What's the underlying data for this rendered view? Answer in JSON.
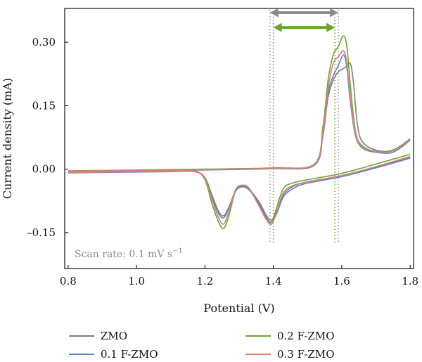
{
  "chart_data": {
    "type": "line",
    "xlabel": "Potential (V)",
    "ylabel": "Current density (mA)",
    "xlim": [
      0.79,
      1.81
    ],
    "ylim": [
      -0.235,
      0.38
    ],
    "x_ticks": [
      0.8,
      1.0,
      1.2,
      1.4,
      1.6,
      1.8
    ],
    "x_tick_labels": [
      "0.8",
      "1.0",
      "1.2",
      "1.4",
      "1.6",
      "1.8"
    ],
    "y_ticks": [
      0.3,
      0.15,
      0.0,
      -0.15
    ],
    "y_tick_labels": [
      "0.30",
      "0.15",
      "0.00",
      "–0.15"
    ],
    "annotation": "Scan rate: 0.1 mV s",
    "annotation_sup": "−1",
    "legend_placement": "bottom",
    "grid": false,
    "markers": {
      "gray_dotted_x": [
        1.39,
        1.59
      ],
      "green_dotted_x": [
        1.4,
        1.58
      ],
      "gray_arrow": {
        "x": [
          1.39,
          1.59
        ],
        "y": 0.37,
        "color": "#8c8c8c"
      },
      "green_arrow": {
        "x": [
          1.4,
          1.58
        ],
        "y": 0.335,
        "color": "#6aa629"
      }
    },
    "series": [
      {
        "name": "ZMO",
        "color": "#7f7f7f",
        "cathodic": [
          [
            0.8,
            -0.008
          ],
          [
            1.0,
            -0.006
          ],
          [
            1.1,
            -0.005
          ],
          [
            1.17,
            -0.005
          ],
          [
            1.2,
            -0.02
          ],
          [
            1.22,
            -0.06
          ],
          [
            1.24,
            -0.1
          ],
          [
            1.255,
            -0.11
          ],
          [
            1.27,
            -0.09
          ],
          [
            1.29,
            -0.05
          ],
          [
            1.31,
            -0.04
          ],
          [
            1.33,
            -0.048
          ],
          [
            1.36,
            -0.08
          ],
          [
            1.38,
            -0.11
          ],
          [
            1.395,
            -0.12
          ],
          [
            1.41,
            -0.1
          ],
          [
            1.43,
            -0.06
          ],
          [
            1.46,
            -0.04
          ],
          [
            1.5,
            -0.03
          ],
          [
            1.6,
            -0.015
          ],
          [
            1.7,
            0.005
          ],
          [
            1.8,
            0.028
          ]
        ],
        "anodic": [
          [
            0.8,
            -0.005
          ],
          [
            1.0,
            -0.003
          ],
          [
            1.2,
            -0.001
          ],
          [
            1.4,
            0.002
          ],
          [
            1.52,
            0.01
          ],
          [
            1.545,
            0.08
          ],
          [
            1.56,
            0.17
          ],
          [
            1.575,
            0.21
          ],
          [
            1.59,
            0.23
          ],
          [
            1.61,
            0.24
          ],
          [
            1.625,
            0.25
          ],
          [
            1.635,
            0.2
          ],
          [
            1.645,
            0.11
          ],
          [
            1.66,
            0.065
          ],
          [
            1.7,
            0.045
          ],
          [
            1.75,
            0.045
          ],
          [
            1.8,
            0.072
          ]
        ]
      },
      {
        "name": "0.1 F-ZMO",
        "color": "#5a84c4",
        "cathodic": [
          [
            0.8,
            -0.009
          ],
          [
            1.0,
            -0.007
          ],
          [
            1.1,
            -0.006
          ],
          [
            1.17,
            -0.006
          ],
          [
            1.2,
            -0.022
          ],
          [
            1.22,
            -0.065
          ],
          [
            1.24,
            -0.105
          ],
          [
            1.255,
            -0.115
          ],
          [
            1.27,
            -0.092
          ],
          [
            1.29,
            -0.052
          ],
          [
            1.31,
            -0.042
          ],
          [
            1.33,
            -0.05
          ],
          [
            1.36,
            -0.085
          ],
          [
            1.38,
            -0.115
          ],
          [
            1.395,
            -0.125
          ],
          [
            1.41,
            -0.105
          ],
          [
            1.43,
            -0.065
          ],
          [
            1.46,
            -0.045
          ],
          [
            1.5,
            -0.033
          ],
          [
            1.6,
            -0.018
          ],
          [
            1.7,
            0.003
          ],
          [
            1.8,
            0.026
          ]
        ],
        "anodic": [
          [
            0.8,
            -0.006
          ],
          [
            1.0,
            -0.004
          ],
          [
            1.2,
            -0.002
          ],
          [
            1.4,
            0.001
          ],
          [
            1.52,
            0.009
          ],
          [
            1.545,
            0.085
          ],
          [
            1.56,
            0.18
          ],
          [
            1.575,
            0.22
          ],
          [
            1.59,
            0.245
          ],
          [
            1.605,
            0.27
          ],
          [
            1.615,
            0.24
          ],
          [
            1.625,
            0.16
          ],
          [
            1.64,
            0.08
          ],
          [
            1.66,
            0.05
          ],
          [
            1.7,
            0.04
          ],
          [
            1.75,
            0.04
          ],
          [
            1.8,
            0.068
          ]
        ]
      },
      {
        "name": "0.2 F-ZMO",
        "color": "#6aa629",
        "cathodic": [
          [
            0.8,
            -0.007
          ],
          [
            1.0,
            -0.005
          ],
          [
            1.1,
            -0.004
          ],
          [
            1.17,
            -0.004
          ],
          [
            1.2,
            -0.025
          ],
          [
            1.22,
            -0.08
          ],
          [
            1.24,
            -0.125
          ],
          [
            1.255,
            -0.14
          ],
          [
            1.27,
            -0.11
          ],
          [
            1.29,
            -0.05
          ],
          [
            1.31,
            -0.038
          ],
          [
            1.33,
            -0.046
          ],
          [
            1.36,
            -0.09
          ],
          [
            1.38,
            -0.12
          ],
          [
            1.395,
            -0.125
          ],
          [
            1.41,
            -0.09
          ],
          [
            1.43,
            -0.045
          ],
          [
            1.46,
            -0.032
          ],
          [
            1.5,
            -0.025
          ],
          [
            1.6,
            -0.01
          ],
          [
            1.7,
            0.012
          ],
          [
            1.8,
            0.035
          ]
        ],
        "anodic": [
          [
            0.8,
            -0.004
          ],
          [
            1.0,
            -0.002
          ],
          [
            1.2,
            0.0
          ],
          [
            1.4,
            0.003
          ],
          [
            1.52,
            0.012
          ],
          [
            1.545,
            0.1
          ],
          [
            1.56,
            0.21
          ],
          [
            1.575,
            0.27
          ],
          [
            1.59,
            0.29
          ],
          [
            1.605,
            0.315
          ],
          [
            1.615,
            0.29
          ],
          [
            1.625,
            0.2
          ],
          [
            1.64,
            0.09
          ],
          [
            1.66,
            0.055
          ],
          [
            1.7,
            0.042
          ],
          [
            1.75,
            0.045
          ],
          [
            1.8,
            0.07
          ]
        ]
      },
      {
        "name": "0.3 F-ZMO",
        "color": "#e07e78",
        "cathodic": [
          [
            0.8,
            -0.008
          ],
          [
            1.0,
            -0.006
          ],
          [
            1.1,
            -0.005
          ],
          [
            1.17,
            -0.005
          ],
          [
            1.2,
            -0.022
          ],
          [
            1.22,
            -0.07
          ],
          [
            1.24,
            -0.115
          ],
          [
            1.255,
            -0.13
          ],
          [
            1.27,
            -0.1
          ],
          [
            1.29,
            -0.048
          ],
          [
            1.31,
            -0.038
          ],
          [
            1.33,
            -0.047
          ],
          [
            1.36,
            -0.09
          ],
          [
            1.38,
            -0.12
          ],
          [
            1.395,
            -0.13
          ],
          [
            1.41,
            -0.1
          ],
          [
            1.43,
            -0.055
          ],
          [
            1.46,
            -0.038
          ],
          [
            1.5,
            -0.03
          ],
          [
            1.6,
            -0.015
          ],
          [
            1.7,
            0.006
          ],
          [
            1.8,
            0.03
          ]
        ],
        "anodic": [
          [
            0.8,
            -0.005
          ],
          [
            1.0,
            -0.003
          ],
          [
            1.2,
            -0.001
          ],
          [
            1.4,
            0.002
          ],
          [
            1.52,
            0.011
          ],
          [
            1.545,
            0.09
          ],
          [
            1.56,
            0.19
          ],
          [
            1.575,
            0.25
          ],
          [
            1.59,
            0.265
          ],
          [
            1.605,
            0.28
          ],
          [
            1.615,
            0.25
          ],
          [
            1.625,
            0.17
          ],
          [
            1.64,
            0.085
          ],
          [
            1.66,
            0.052
          ],
          [
            1.7,
            0.042
          ],
          [
            1.75,
            0.043
          ],
          [
            1.8,
            0.07
          ]
        ]
      }
    ]
  }
}
